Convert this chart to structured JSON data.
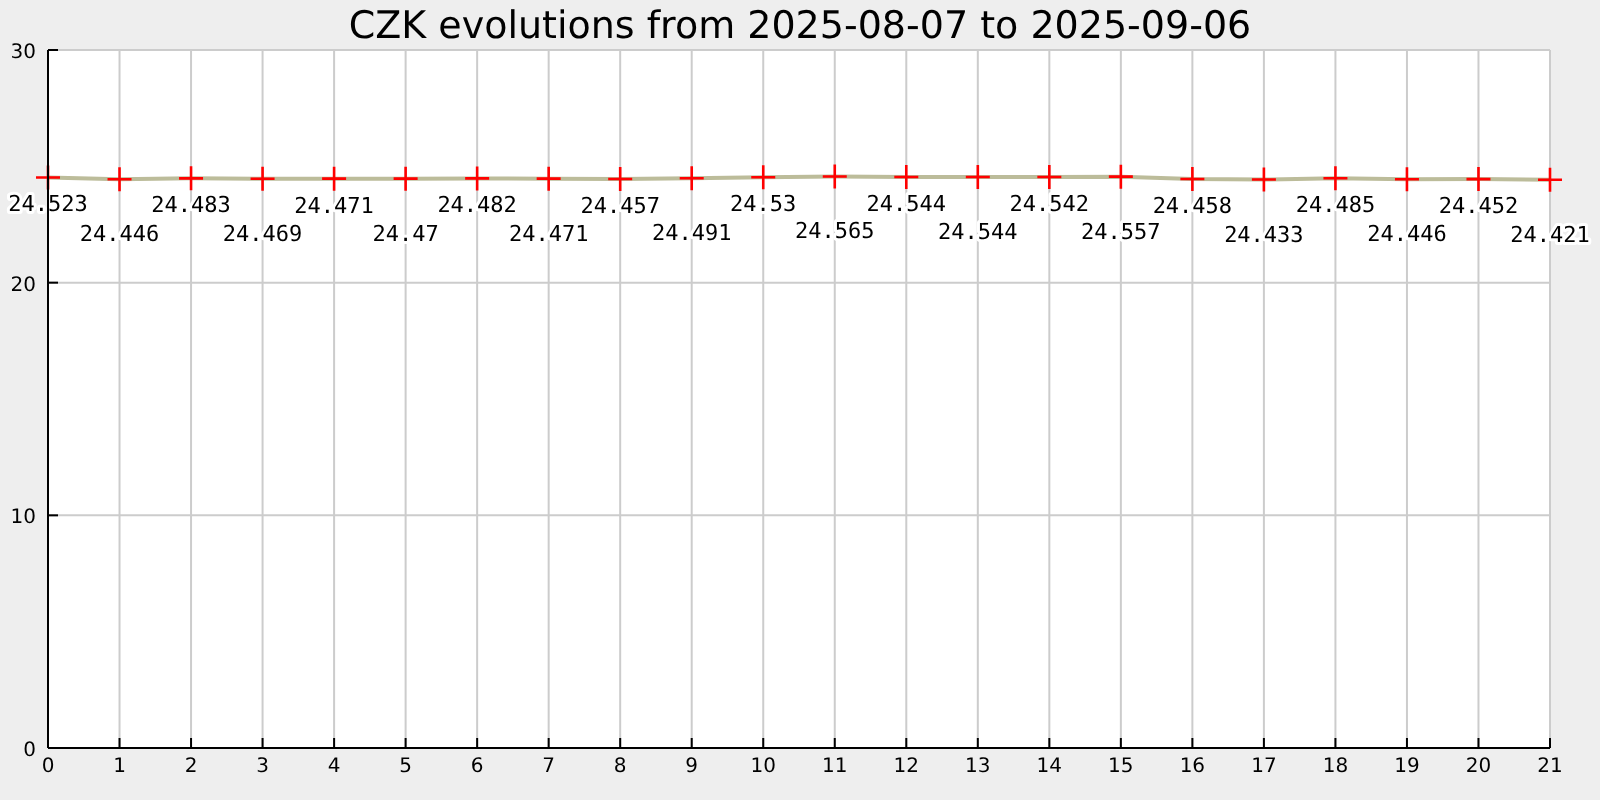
{
  "chart_data": {
    "type": "line",
    "title": "CZK evolutions from 2025-08-07 to 2025-09-06",
    "x": [
      0,
      1,
      2,
      3,
      4,
      5,
      6,
      7,
      8,
      9,
      10,
      11,
      12,
      13,
      14,
      15,
      16,
      17,
      18,
      19,
      20,
      21
    ],
    "series": [
      {
        "color": "#bcbc9a",
        "values": [
          24.523,
          24.446,
          24.483,
          24.469,
          24.471,
          24.47,
          24.482,
          24.471,
          24.457,
          24.491,
          24.53,
          24.565,
          24.544,
          24.544,
          24.542,
          24.557,
          24.458,
          24.433,
          24.485,
          24.446,
          24.452,
          24.421
        ]
      }
    ],
    "xlim": [
      0,
      21
    ],
    "xticks": [
      0,
      1,
      2,
      3,
      4,
      5,
      6,
      7,
      8,
      9,
      10,
      11,
      12,
      13,
      14,
      15,
      16,
      17,
      18,
      19,
      20,
      21
    ],
    "ylim": [
      0,
      30
    ],
    "yticks": [
      0,
      10,
      20,
      30
    ],
    "grid": true,
    "marker": "cross",
    "data_labels": true
  }
}
